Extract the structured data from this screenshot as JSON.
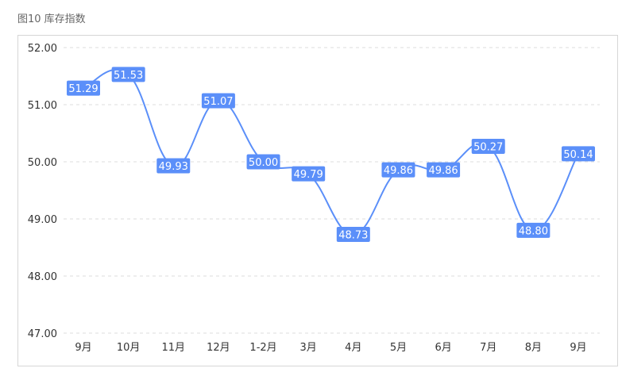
{
  "figure_title": "图10 库存指数",
  "chart_data": {
    "type": "line",
    "title": "",
    "xlabel": "",
    "ylabel": "",
    "categories": [
      "9月",
      "10月",
      "11月",
      "12月",
      "1-2月",
      "3月",
      "4月",
      "5月",
      "6月",
      "7月",
      "8月",
      "9月"
    ],
    "series": [
      {
        "values": [
          51.29,
          51.53,
          49.93,
          51.07,
          50.0,
          49.79,
          48.73,
          49.86,
          49.86,
          50.27,
          48.8,
          50.14
        ]
      }
    ],
    "ylim": [
      47.0,
      52.0
    ],
    "yticks": [
      "47.00",
      "48.00",
      "49.00",
      "50.00",
      "51.00",
      "52.00"
    ],
    "grid": "horizontal dashed",
    "line_color": "#5b8ff9",
    "label_bg_color": "#5b8ff9"
  }
}
